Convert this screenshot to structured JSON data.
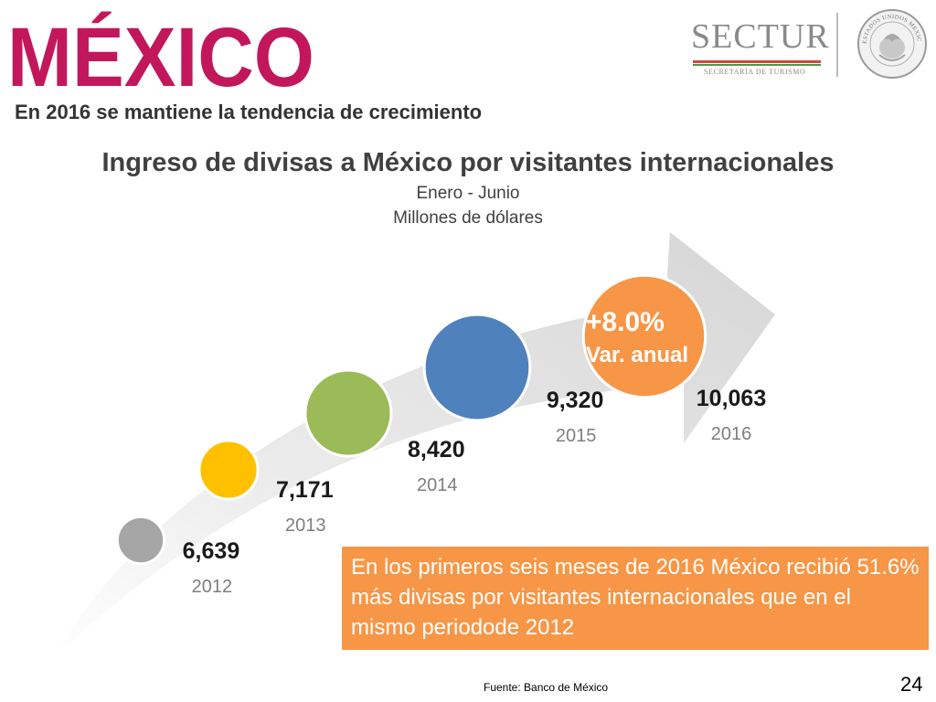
{
  "header": {
    "logo_text": "MÉXICO",
    "sectur_text": "SECTUR",
    "sectur_subtext": "SECRETARÍA DE TURISMO",
    "seal_text": "ESTADOS UNIDOS MEXICANOS"
  },
  "subtitle": "En 2016 se mantiene la tendencia de crecimiento",
  "chart_data": {
    "type": "bar",
    "title": "Ingreso de divisas a México por visitantes internacionales",
    "period": "Enero - Junio",
    "units": "Millones de dólares",
    "categories": [
      "2012",
      "2013",
      "2014",
      "2015",
      "2016"
    ],
    "value_labels": [
      "6,639",
      "7,171",
      "8,420",
      "9,320",
      "10,063"
    ],
    "values": [
      6639,
      7171,
      8420,
      9320,
      10063
    ],
    "point_colors": [
      "#a6a6a6",
      "#ffc000",
      "#9bbb59",
      "#4f81bd",
      "#f79646"
    ],
    "annotation": {
      "value": "+8.0%",
      "label": "Var. anual"
    }
  },
  "callout": "En los primeros seis meses de 2016 México recibió 51.6% más divisas por visitantes internacionales que en el mismo periodode 2012",
  "source": "Fuente:  Banco de México",
  "page_number": "24"
}
